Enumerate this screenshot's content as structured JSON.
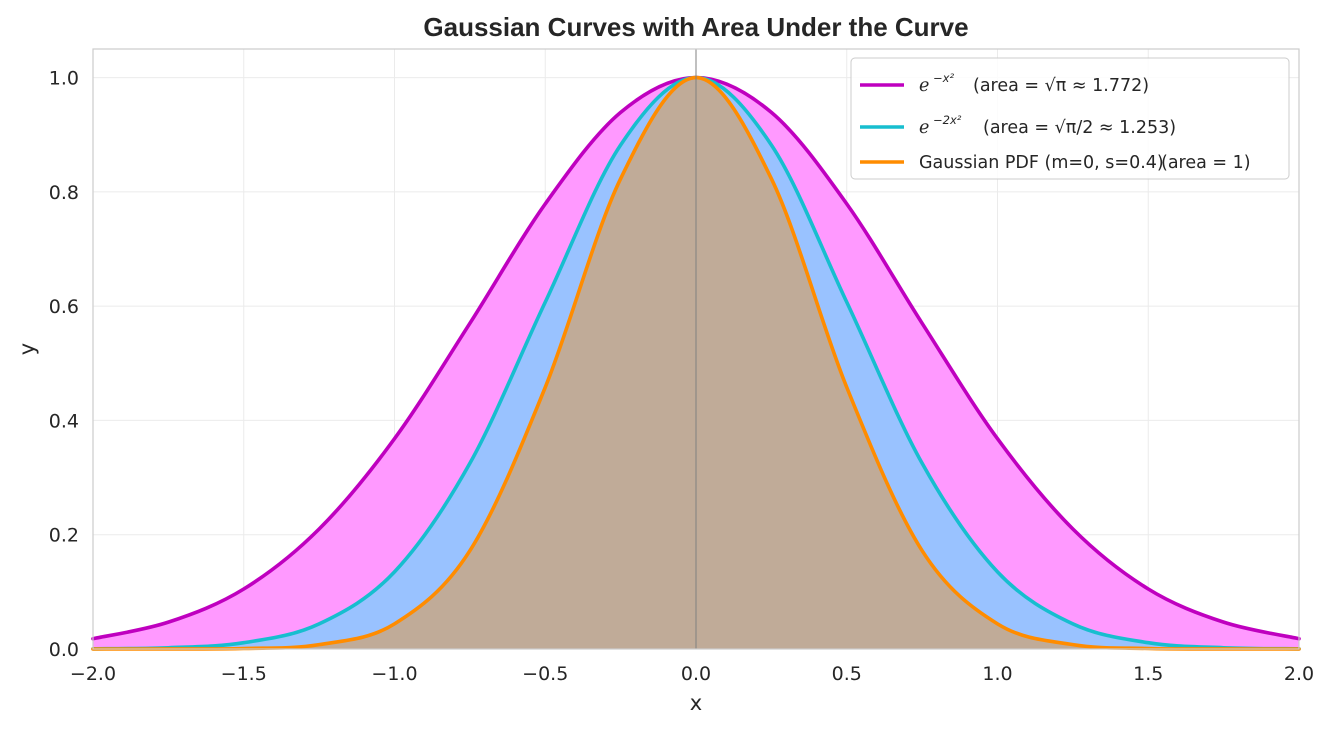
{
  "chart_data": {
    "type": "area",
    "title": "Gaussian Curves with Area Under the Curve",
    "xlabel": "x",
    "ylabel": "y",
    "xlim": [
      -2.0,
      2.0
    ],
    "ylim": [
      0.0,
      1.05
    ],
    "xticks": [
      "−2.0",
      "−1.5",
      "−1.0",
      "−0.5",
      "0.0",
      "0.5",
      "1.0",
      "1.5",
      "2.0"
    ],
    "xtick_values": [
      -2.0,
      -1.5,
      -1.0,
      -0.5,
      0.0,
      0.5,
      1.0,
      1.5,
      2.0
    ],
    "yticks": [
      "0.0",
      "0.2",
      "0.4",
      "0.6",
      "0.8",
      "1.0"
    ],
    "ytick_values": [
      0.0,
      0.2,
      0.4,
      0.6,
      0.8,
      1.0
    ],
    "grid": true,
    "legend_position": "top-right",
    "vertical_line_x": 0.0,
    "x": [
      -2.0,
      -1.75,
      -1.5,
      -1.25,
      -1.0,
      -0.75,
      -0.5,
      -0.25,
      0.0,
      0.25,
      0.5,
      0.75,
      1.0,
      1.25,
      1.5,
      1.75,
      2.0
    ],
    "series": [
      {
        "legend_main": "e",
        "legend_sup": "−x²",
        "legend_note": "(area = √π ≈ 1.772)",
        "color": "#bf00bf",
        "fill": "#ff99ff",
        "values": [
          0.018,
          0.047,
          0.105,
          0.21,
          0.368,
          0.57,
          0.779,
          0.939,
          1.0,
          0.939,
          0.779,
          0.57,
          0.368,
          0.21,
          0.105,
          0.047,
          0.018
        ]
      },
      {
        "legend_main": "e",
        "legend_sup": "−2x²",
        "legend_note": "(area = √π/2 ≈ 1.253)",
        "color": "#17becf",
        "fill": "#99c2ff",
        "values": [
          0.0003,
          0.0022,
          0.011,
          0.044,
          0.135,
          0.325,
          0.607,
          0.882,
          1.0,
          0.882,
          0.607,
          0.325,
          0.135,
          0.044,
          0.011,
          0.0022,
          0.0003
        ]
      },
      {
        "legend_main": "Gaussian PDF (m=0, s=0.4)",
        "legend_sup": "",
        "legend_note": "(area = 1)",
        "color": "#ff8c00",
        "fill": "#c0ab98",
        "values": [
          0.0,
          7e-05,
          0.00088,
          0.0076,
          0.044,
          0.172,
          0.458,
          0.823,
          1.0,
          0.823,
          0.458,
          0.172,
          0.044,
          0.0076,
          0.00088,
          7e-05,
          0.0
        ]
      }
    ]
  }
}
